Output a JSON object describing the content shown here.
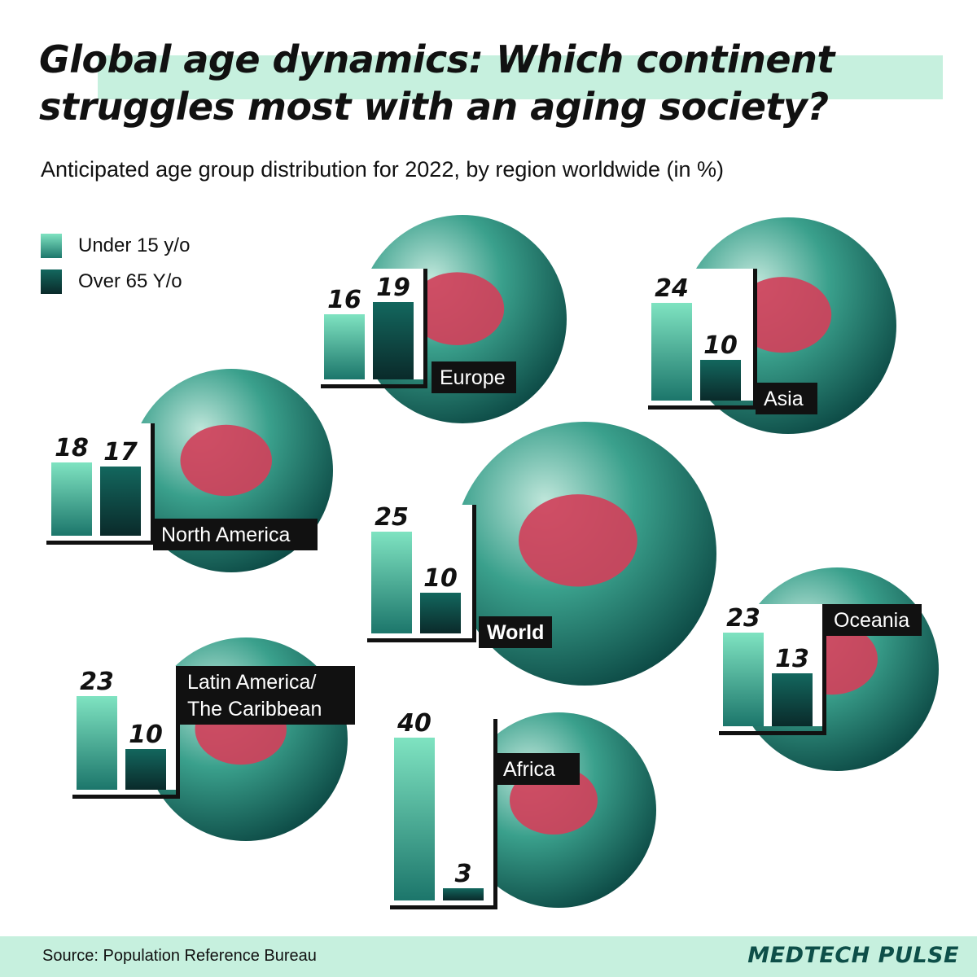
{
  "header": {
    "title_line1": "Global age dynamics: Which continent",
    "title_line2": "struggles most with an aging society?",
    "subtitle": "Anticipated age group distribution for 2022, by region worldwide (in %)"
  },
  "legend": [
    {
      "label": "Under 15 y/o",
      "key": "under15"
    },
    {
      "label": "Over 65 Y/o",
      "key": "over65"
    }
  ],
  "chart_data": {
    "type": "bar",
    "series": [
      {
        "name": "Under 15 y/o",
        "key": "under15"
      },
      {
        "name": "Over 65 Y/o",
        "key": "over65"
      }
    ],
    "regions": [
      {
        "id": "europe",
        "name": "Europe",
        "lines": [
          "Europe"
        ],
        "under15": 16,
        "over65": 19
      },
      {
        "id": "asia",
        "name": "Asia",
        "lines": [
          "Asia"
        ],
        "under15": 24,
        "over65": 10
      },
      {
        "id": "north-america",
        "name": "North America",
        "lines": [
          "North America"
        ],
        "under15": 18,
        "over65": 17
      },
      {
        "id": "world",
        "name": "World",
        "lines": [
          "World"
        ],
        "under15": 25,
        "over65": 10
      },
      {
        "id": "oceania",
        "name": "Oceania",
        "lines": [
          "Oceania"
        ],
        "under15": 23,
        "over65": 13
      },
      {
        "id": "latin-america",
        "name": "Latin America/ The Caribbean",
        "lines": [
          "Latin America/",
          "The Caribbean"
        ],
        "under15": 23,
        "over65": 10
      },
      {
        "id": "africa",
        "name": "Africa",
        "lines": [
          "Africa"
        ],
        "under15": 40,
        "over65": 3
      }
    ],
    "colors": {
      "under15_top": "#7fe3c1",
      "under15_bottom": "#1c766b",
      "over65_top": "#13675e",
      "over65_bottom": "#0a2a2a",
      "globe_light": "#bfe6da",
      "globe_mid": "#3aa08c",
      "globe_dark": "#0d4b46",
      "highlight": "#d0415b"
    }
  },
  "footer": {
    "source": "Source: Population Reference Bureau",
    "brand": "MEDTECH PULSE"
  }
}
